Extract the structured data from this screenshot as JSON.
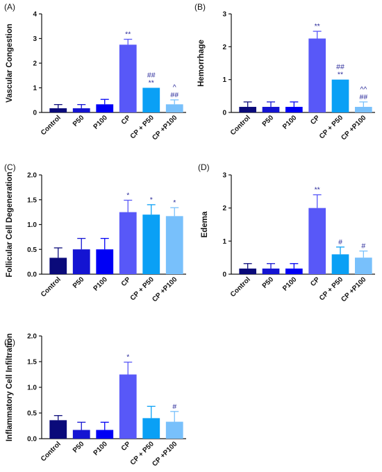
{
  "colors": [
    "#0a0a7a",
    "#1414d2",
    "#0000f5",
    "#5858f8",
    "#0aa0f5",
    "#78c0fb"
  ],
  "chart_data": [
    {
      "type": "bar",
      "panel_label": "(A)",
      "ylabel": "Vascular Congestion",
      "categories": [
        "Control",
        "P50",
        "P100",
        "CP",
        "CP + P50",
        "CP +P100"
      ],
      "ylim": [
        0,
        4
      ],
      "yticks": [
        "0",
        "1",
        "2",
        "3",
        "4"
      ],
      "values": [
        0.17,
        0.17,
        0.33,
        2.75,
        1.0,
        0.33
      ],
      "errors": [
        0.15,
        0.15,
        0.2,
        0.22,
        0,
        0.18
      ],
      "annotations": [
        [],
        [],
        [],
        [
          "**"
        ],
        [
          "##",
          "**"
        ],
        [
          "^",
          "##"
        ]
      ]
    },
    {
      "type": "bar",
      "panel_label": "(B)",
      "ylabel": "Hemorrhage",
      "categories": [
        "Control",
        "P50",
        "P100",
        "CP",
        "CP + P50",
        "CP +P100"
      ],
      "ylim": [
        0,
        3
      ],
      "yticks": [
        "0",
        "1",
        "2",
        "3"
      ],
      "values": [
        0.17,
        0.17,
        0.17,
        2.25,
        1.0,
        0.17
      ],
      "errors": [
        0.15,
        0.15,
        0.15,
        0.22,
        0,
        0.15
      ],
      "annotations": [
        [],
        [],
        [],
        [
          "**"
        ],
        [
          "##",
          "**"
        ],
        [
          "^^",
          "##"
        ]
      ]
    },
    {
      "type": "bar",
      "panel_label": "(C)",
      "ylabel": "Follicular Cell Degeneration",
      "categories": [
        "Control",
        "P50",
        "P100",
        "CP",
        "CP + P50",
        "CP +P100"
      ],
      "ylim": [
        0,
        2.0
      ],
      "yticks": [
        "0.0",
        "0.5",
        "1.0",
        "1.5",
        "2.0"
      ],
      "values": [
        0.33,
        0.5,
        0.5,
        1.25,
        1.2,
        1.17
      ],
      "errors": [
        0.2,
        0.22,
        0.22,
        0.24,
        0.2,
        0.17
      ],
      "annotations": [
        [],
        [],
        [],
        [
          "*"
        ],
        [
          "*"
        ],
        [
          "*"
        ]
      ]
    },
    {
      "type": "bar",
      "panel_label": "(D)",
      "ylabel": "Edema",
      "categories": [
        "Control",
        "P50",
        "P100",
        "CP",
        "CP + P50",
        "CP +P100"
      ],
      "ylim": [
        0,
        3
      ],
      "yticks": [
        "0",
        "1",
        "2",
        "3"
      ],
      "values": [
        0.17,
        0.17,
        0.17,
        2.0,
        0.6,
        0.5
      ],
      "errors": [
        0.15,
        0.15,
        0.15,
        0.4,
        0.22,
        0.2
      ],
      "annotations": [
        [],
        [],
        [],
        [
          "**"
        ],
        [
          "#"
        ],
        [
          "#"
        ]
      ]
    },
    {
      "type": "bar",
      "panel_label": "(E)",
      "ylabel": "Inflammatory Cell Infiltration",
      "categories": [
        "Control",
        "P50",
        "P100",
        "CP",
        "CP + P50",
        "CP +P100"
      ],
      "ylim": [
        0,
        2.0
      ],
      "yticks": [
        "0.0",
        "0.5",
        "1.0",
        "1.5",
        "2.0"
      ],
      "values": [
        0.36,
        0.17,
        0.17,
        1.25,
        0.4,
        0.33
      ],
      "errors": [
        0.09,
        0.15,
        0.15,
        0.24,
        0.23,
        0.2
      ],
      "annotations": [
        [],
        [],
        [],
        [
          "*"
        ],
        [],
        [
          "#"
        ]
      ]
    }
  ]
}
